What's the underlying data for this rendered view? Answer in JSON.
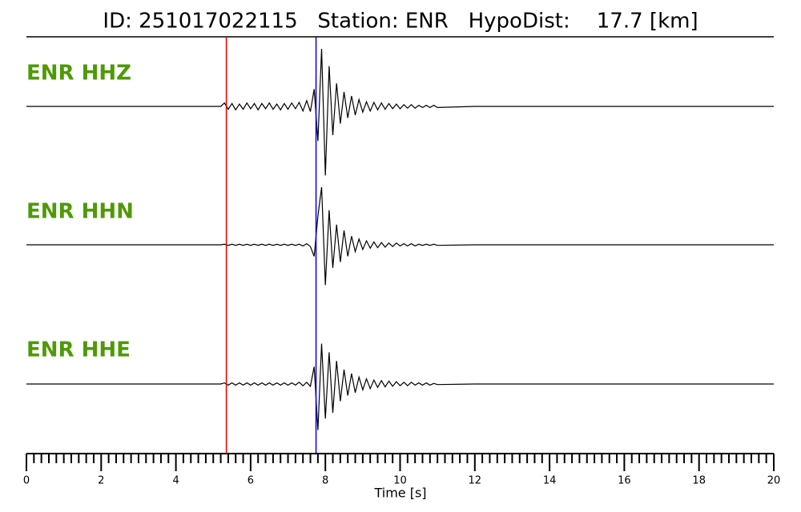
{
  "chart_data": {
    "type": "seismogram",
    "title": "ID: 251017022115   Station: ENR   HypoDist:    17.7 [km]",
    "xlabel": "Time [s]",
    "xlim": [
      0,
      20
    ],
    "xticks": [
      0,
      2,
      4,
      6,
      8,
      10,
      12,
      14,
      16,
      18,
      20
    ],
    "xminorticks": [
      0.2,
      0.4,
      0.6,
      0.8,
      1,
      1.2,
      1.4,
      1.6,
      1.8,
      2.2,
      2.4,
      2.6,
      2.8,
      3,
      3.2,
      3.4,
      3.6,
      3.8,
      4.2,
      4.4,
      4.6,
      4.8,
      5,
      5.2,
      5.4,
      5.6,
      5.8,
      6.2,
      6.4,
      6.6,
      6.8,
      7,
      7.2,
      7.4,
      7.6,
      7.8,
      8.2,
      8.4,
      8.6,
      8.8,
      9,
      9.2,
      9.4,
      9.6,
      9.8,
      10.2,
      10.4,
      10.6,
      10.8,
      11,
      11.2,
      11.4,
      11.6,
      11.8,
      12.2,
      12.4,
      12.6,
      12.8,
      13,
      13.2,
      13.4,
      13.6,
      13.8,
      14.2,
      14.4,
      14.6,
      14.8,
      15,
      15.2,
      15.4,
      15.6,
      15.8,
      16.2,
      16.4,
      16.6,
      16.8,
      17,
      17.2,
      17.4,
      17.6,
      17.8,
      18.2,
      18.4,
      18.6,
      18.8,
      19,
      19.2,
      19.4,
      19.6,
      19.8
    ],
    "label_color": "#4e9a06",
    "markers": [
      {
        "x": 5.35,
        "color": "#e00000"
      },
      {
        "x": 7.75,
        "color": "#0000e0"
      }
    ],
    "x": [
      0,
      5.2,
      5.3,
      5.4,
      5.5,
      5.6,
      5.7,
      5.8,
      5.9,
      6,
      6.1,
      6.2,
      6.3,
      6.4,
      6.5,
      6.6,
      6.7,
      6.8,
      6.9,
      7,
      7.1,
      7.2,
      7.3,
      7.4,
      7.5,
      7.6,
      7.7,
      7.8,
      7.9,
      8,
      8.1,
      8.2,
      8.3,
      8.4,
      8.5,
      8.6,
      8.7,
      8.8,
      8.9,
      9,
      9.1,
      9.2,
      9.3,
      9.4,
      9.5,
      9.6,
      9.7,
      9.8,
      9.9,
      10,
      10.1,
      10.2,
      10.3,
      10.4,
      10.5,
      10.6,
      10.7,
      10.8,
      10.9,
      11,
      12,
      20
    ],
    "series": [
      {
        "name": "ENR HHZ",
        "color": "#000000",
        "values": [
          0,
          0,
          0.06,
          -0.05,
          0.05,
          -0.06,
          0.04,
          -0.05,
          0.06,
          -0.04,
          0.05,
          -0.06,
          0.05,
          -0.04,
          0.06,
          -0.05,
          0.04,
          -0.06,
          0.05,
          -0.05,
          0.06,
          -0.04,
          0.07,
          -0.08,
          0.1,
          -0.09,
          0.3,
          -0.6,
          1.0,
          -1.2,
          0.7,
          -0.5,
          0.4,
          -0.3,
          0.25,
          -0.2,
          0.18,
          -0.15,
          0.12,
          -0.1,
          0.08,
          -0.08,
          0.07,
          -0.06,
          0.06,
          -0.05,
          0.05,
          -0.04,
          0.04,
          -0.04,
          0.03,
          -0.03,
          0.03,
          -0.03,
          0.02,
          -0.02,
          0.02,
          -0.02,
          0.02,
          -0.02,
          0,
          0
        ]
      },
      {
        "name": "ENR HHN",
        "color": "#000000",
        "values": [
          0,
          0,
          0.01,
          -0.01,
          0.01,
          -0.01,
          0.01,
          -0.01,
          0.01,
          -0.01,
          0.01,
          -0.01,
          0.01,
          -0.01,
          0.01,
          -0.01,
          0.01,
          -0.01,
          0.01,
          -0.01,
          0.01,
          -0.01,
          0.01,
          -0.02,
          0.02,
          -0.03,
          -0.2,
          0.5,
          1.0,
          -0.7,
          0.6,
          -0.4,
          0.35,
          -0.3,
          0.25,
          -0.2,
          0.15,
          -0.12,
          0.1,
          -0.08,
          0.07,
          -0.06,
          0.05,
          -0.05,
          0.04,
          -0.04,
          0.03,
          -0.03,
          0.03,
          -0.02,
          0.02,
          -0.02,
          0.02,
          -0.02,
          0.01,
          -0.01,
          0.01,
          -0.01,
          0.01,
          -0.01,
          0,
          0
        ]
      },
      {
        "name": "ENR HHE",
        "color": "#000000",
        "values": [
          0,
          0,
          0.02,
          -0.02,
          0.02,
          -0.02,
          0.02,
          -0.02,
          0.02,
          -0.02,
          0.02,
          -0.02,
          0.02,
          -0.02,
          0.02,
          -0.02,
          0.02,
          -0.02,
          0.02,
          -0.02,
          0.02,
          -0.02,
          0.03,
          -0.03,
          0.03,
          -0.04,
          0.3,
          -0.8,
          0.7,
          -0.6,
          0.55,
          -0.5,
          0.4,
          -0.3,
          0.25,
          -0.2,
          0.18,
          -0.15,
          0.12,
          -0.1,
          0.09,
          -0.08,
          0.07,
          -0.06,
          0.06,
          -0.05,
          0.05,
          -0.04,
          0.04,
          -0.03,
          0.03,
          -0.03,
          0.03,
          -0.02,
          0.02,
          -0.02,
          0.02,
          -0.02,
          0.01,
          -0.01,
          0,
          0
        ]
      }
    ]
  }
}
